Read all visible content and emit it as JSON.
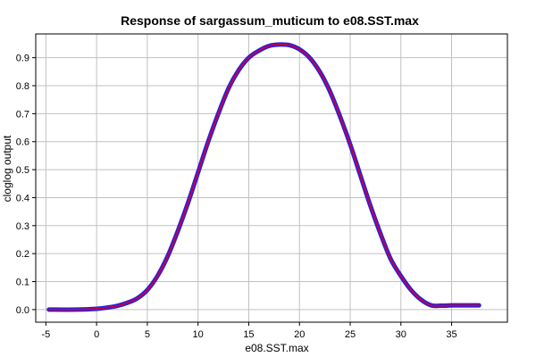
{
  "chart_data": {
    "type": "line",
    "title": "Response of sargassum_muticum to e08.SST.max",
    "xlabel": "e08.SST.max",
    "ylabel": "cloglog output",
    "xlim": [
      -6,
      40.5
    ],
    "ylim": [
      -0.045,
      0.985
    ],
    "x_ticks": [
      -5,
      0,
      5,
      10,
      15,
      20,
      25,
      30,
      35
    ],
    "x_tick_labels": [
      "-5",
      "0",
      "5",
      "10",
      "15",
      "20",
      "25",
      "30",
      "35"
    ],
    "y_ticks": [
      0.0,
      0.1,
      0.2,
      0.3,
      0.4,
      0.5,
      0.6,
      0.7,
      0.8,
      0.9
    ],
    "y_tick_labels": [
      "0.0",
      "0.1",
      "0.2",
      "0.3",
      "0.4",
      "0.5",
      "0.6",
      "0.7",
      "0.8",
      "0.9"
    ],
    "grid": true,
    "legend": "none",
    "colors": {
      "band": "#2222dd",
      "line": "#c0004e",
      "grid": "#c0c0c0"
    },
    "series": [
      {
        "x": [
          -4.7,
          -2,
          0,
          1,
          2,
          3,
          4,
          5,
          6,
          7,
          8,
          9,
          10,
          11,
          12,
          13,
          14,
          15,
          16,
          17,
          18,
          19,
          20,
          21,
          22,
          23,
          24,
          25,
          26,
          27,
          28,
          29,
          30,
          31,
          32,
          33,
          34,
          35,
          36,
          37.7
        ],
        "y": [
          0.0,
          0.0,
          0.003,
          0.007,
          0.013,
          0.024,
          0.04,
          0.07,
          0.12,
          0.19,
          0.28,
          0.38,
          0.49,
          0.6,
          0.7,
          0.79,
          0.855,
          0.9,
          0.925,
          0.942,
          0.947,
          0.945,
          0.93,
          0.9,
          0.85,
          0.78,
          0.69,
          0.59,
          0.48,
          0.37,
          0.27,
          0.18,
          0.12,
          0.07,
          0.035,
          0.015,
          0.014,
          0.015,
          0.015,
          0.015
        ]
      }
    ]
  }
}
